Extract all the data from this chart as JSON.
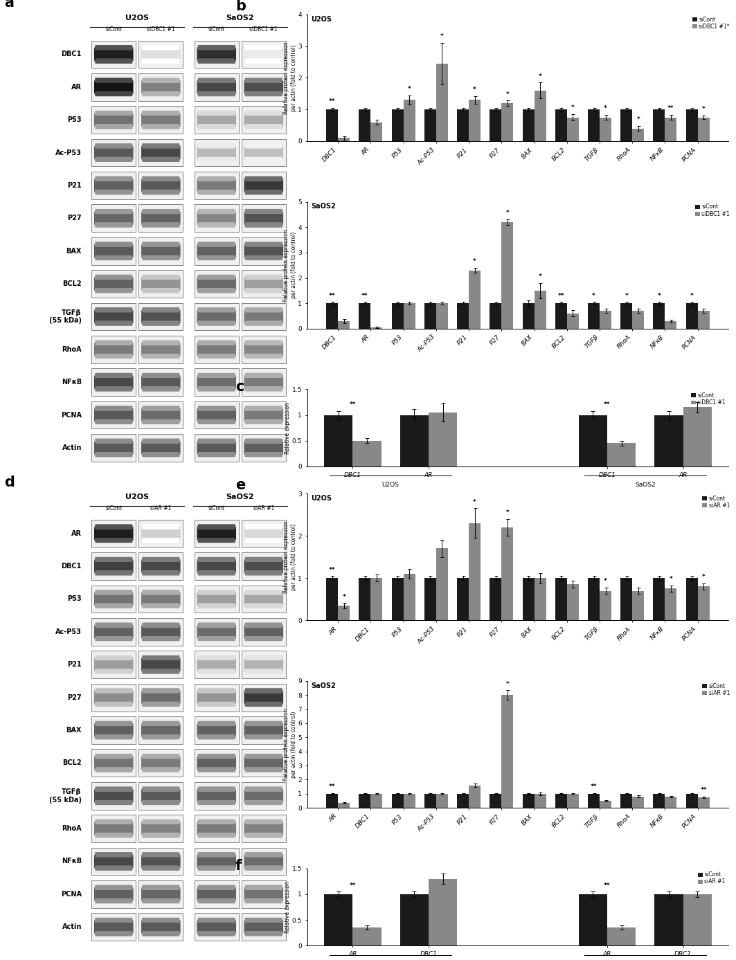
{
  "panel_a_labels": [
    "DBC1",
    "AR",
    "P53",
    "Ac-P53",
    "P21",
    "P27",
    "BAX",
    "BCL2",
    "TGFβ\n(55 kDa)",
    "RhoA",
    "NFκB",
    "PCNA",
    "Actin"
  ],
  "panel_a_col_headers": [
    "siCont",
    "siDBC1 #1",
    "siCont",
    "siDBC1 #1"
  ],
  "panel_a_group_headers": [
    "U2OS",
    "SaOS2"
  ],
  "panel_b_U2OS_categories": [
    "DBC1",
    "AR",
    "P53",
    "Ac-P53",
    "P21",
    "P27",
    "BAX",
    "BCL2",
    "TGFβ",
    "RhoA",
    "NFκB",
    "PCNA"
  ],
  "panel_b_U2OS_siCont": [
    1.0,
    1.0,
    1.0,
    1.0,
    1.0,
    1.0,
    1.0,
    1.0,
    1.0,
    1.0,
    1.0,
    1.0
  ],
  "panel_b_U2OS_siDBC1": [
    0.1,
    0.6,
    1.3,
    2.45,
    1.3,
    1.2,
    1.6,
    0.75,
    0.75,
    0.4,
    0.75,
    0.75
  ],
  "panel_b_U2OS_siCont_err": [
    0.05,
    0.05,
    0.05,
    0.05,
    0.05,
    0.05,
    0.05,
    0.05,
    0.05,
    0.05,
    0.05,
    0.05
  ],
  "panel_b_U2OS_siDBC1_err": [
    0.05,
    0.08,
    0.15,
    0.65,
    0.12,
    0.08,
    0.25,
    0.1,
    0.08,
    0.08,
    0.08,
    0.06
  ],
  "panel_b_U2OS_ylim": [
    0,
    4
  ],
  "panel_b_U2OS_yticks": [
    0,
    1,
    2,
    3,
    4
  ],
  "panel_b_SaOS2_categories": [
    "DBC1",
    "AR",
    "P53",
    "Ac-P53",
    "P21",
    "P27",
    "BAX",
    "BCL2",
    "TGFβ",
    "RhoA",
    "NFκB",
    "PCNA"
  ],
  "panel_b_SaOS2_siCont": [
    1.0,
    1.0,
    1.0,
    1.0,
    1.0,
    1.0,
    1.0,
    1.0,
    1.0,
    1.0,
    1.0,
    1.0
  ],
  "panel_b_SaOS2_siDBC1": [
    0.3,
    0.05,
    1.0,
    1.0,
    2.3,
    4.2,
    1.5,
    0.6,
    0.7,
    0.7,
    0.3,
    0.7
  ],
  "panel_b_SaOS2_siCont_err": [
    0.05,
    0.05,
    0.05,
    0.05,
    0.05,
    0.05,
    0.1,
    0.05,
    0.05,
    0.05,
    0.05,
    0.05
  ],
  "panel_b_SaOS2_siDBC1_err": [
    0.08,
    0.03,
    0.05,
    0.05,
    0.1,
    0.12,
    0.3,
    0.12,
    0.08,
    0.08,
    0.05,
    0.08
  ],
  "panel_b_SaOS2_ylim": [
    0,
    5
  ],
  "panel_b_SaOS2_yticks": [
    0,
    1,
    2,
    3,
    4,
    5
  ],
  "panel_c_vals": [
    1.0,
    0.5,
    1.0,
    1.05,
    1.0,
    0.45,
    1.0,
    1.15
  ],
  "panel_c_err": [
    0.08,
    0.05,
    0.12,
    0.18,
    0.08,
    0.05,
    0.08,
    0.1
  ],
  "panel_c_ylim": [
    0,
    1.5
  ],
  "panel_c_yticks": [
    0,
    0.5,
    1.0,
    1.5
  ],
  "panel_d_labels": [
    "AR",
    "DBC1",
    "P53",
    "Ac-P53",
    "P21",
    "P27",
    "BAX",
    "BCL2",
    "TGFβ\n(55 kDa)",
    "RhoA",
    "NFκB",
    "PCNA",
    "Actin"
  ],
  "panel_d_col_headers": [
    "siCont",
    "siAR #1",
    "siCont",
    "siAR #1"
  ],
  "panel_d_group_headers": [
    "U2OS",
    "SaOS2"
  ],
  "panel_e_U2OS_categories": [
    "AR",
    "DBC1",
    "P53",
    "Ac-P53",
    "P21",
    "P27",
    "BAX",
    "BCL2",
    "TGFβ",
    "RhoA",
    "NFκB",
    "PCNA"
  ],
  "panel_e_U2OS_siCont": [
    1.0,
    1.0,
    1.0,
    1.0,
    1.0,
    1.0,
    1.0,
    1.0,
    1.0,
    1.0,
    1.0,
    1.0
  ],
  "panel_e_U2OS_siAR": [
    0.35,
    1.0,
    1.1,
    1.7,
    2.3,
    2.2,
    1.0,
    0.85,
    0.7,
    0.7,
    0.75,
    0.8
  ],
  "panel_e_U2OS_siCont_err": [
    0.05,
    0.05,
    0.05,
    0.05,
    0.05,
    0.05,
    0.05,
    0.05,
    0.05,
    0.05,
    0.05,
    0.05
  ],
  "panel_e_U2OS_siAR_err": [
    0.06,
    0.08,
    0.12,
    0.2,
    0.35,
    0.2,
    0.12,
    0.08,
    0.08,
    0.08,
    0.08,
    0.08
  ],
  "panel_e_U2OS_ylim": [
    0,
    3
  ],
  "panel_e_U2OS_yticks": [
    0,
    1,
    2,
    3
  ],
  "panel_e_SaOS2_categories": [
    "AR",
    "DBC1",
    "P53",
    "Ac-P53",
    "P21",
    "P27",
    "BAX",
    "BCL2",
    "TGFβ",
    "RhoA",
    "NFκB",
    "PCNA"
  ],
  "panel_e_SaOS2_siCont": [
    1.0,
    1.0,
    1.0,
    1.0,
    1.0,
    1.0,
    1.0,
    1.0,
    1.0,
    1.0,
    1.0,
    1.0
  ],
  "panel_e_SaOS2_siAR": [
    0.35,
    1.0,
    1.0,
    1.0,
    1.6,
    8.0,
    1.0,
    1.0,
    0.5,
    0.8,
    0.8,
    0.75
  ],
  "panel_e_SaOS2_siCont_err": [
    0.05,
    0.05,
    0.05,
    0.05,
    0.05,
    0.05,
    0.05,
    0.05,
    0.05,
    0.05,
    0.05,
    0.05
  ],
  "panel_e_SaOS2_siAR_err": [
    0.05,
    0.06,
    0.05,
    0.05,
    0.1,
    0.35,
    0.1,
    0.05,
    0.06,
    0.08,
    0.06,
    0.06
  ],
  "panel_e_SaOS2_ylim": [
    0,
    9
  ],
  "panel_e_SaOS2_yticks": [
    0,
    1,
    2,
    3,
    4,
    5,
    6,
    7,
    8,
    9
  ],
  "panel_f_vals": [
    1.0,
    0.35,
    1.0,
    1.3,
    1.0,
    0.35,
    1.0,
    1.0
  ],
  "panel_f_err": [
    0.05,
    0.04,
    0.05,
    0.1,
    0.05,
    0.04,
    0.05,
    0.05
  ],
  "panel_f_ylim": [
    0,
    1.5
  ],
  "panel_f_yticks": [
    0,
    0.5,
    1.0,
    1.5
  ],
  "color_siCont": "#1a1a1a",
  "color_siDBC1": "#888888",
  "color_siAR": "#888888"
}
